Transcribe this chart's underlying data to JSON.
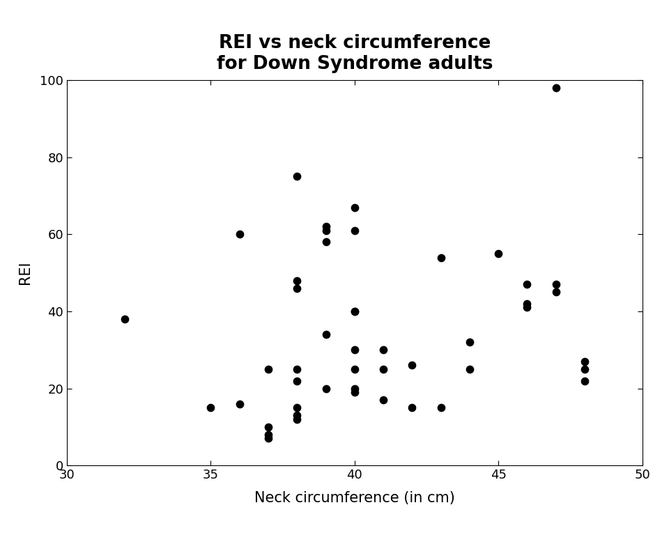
{
  "title": "REI vs neck circumference\nfor Down Syndrome adults",
  "xlabel": "Neck circumference (in cm)",
  "ylabel": "REI",
  "xlim": [
    30,
    50
  ],
  "ylim": [
    0,
    100
  ],
  "xticks": [
    30,
    35,
    40,
    45,
    50
  ],
  "yticks": [
    0,
    20,
    40,
    60,
    80,
    100
  ],
  "x": [
    32,
    35,
    36,
    36,
    37,
    37,
    37,
    37,
    38,
    38,
    38,
    38,
    38,
    38,
    38,
    38,
    39,
    39,
    39,
    39,
    39,
    40,
    40,
    40,
    40,
    40,
    40,
    40,
    40,
    41,
    41,
    41,
    42,
    42,
    43,
    43,
    44,
    44,
    45,
    46,
    46,
    46,
    47,
    47,
    47,
    48,
    48,
    48
  ],
  "y": [
    38,
    15,
    60,
    16,
    8,
    7,
    10,
    25,
    75,
    46,
    48,
    25,
    22,
    15,
    13,
    12,
    62,
    61,
    58,
    34,
    20,
    67,
    61,
    40,
    40,
    30,
    25,
    20,
    19,
    30,
    25,
    17,
    26,
    15,
    54,
    15,
    25,
    32,
    55,
    47,
    42,
    41,
    98,
    47,
    45,
    27,
    25,
    22
  ],
  "marker_color": "#000000",
  "marker_size": 55,
  "title_fontsize": 19,
  "label_fontsize": 15,
  "tick_fontsize": 13,
  "background_color": "#ffffff"
}
